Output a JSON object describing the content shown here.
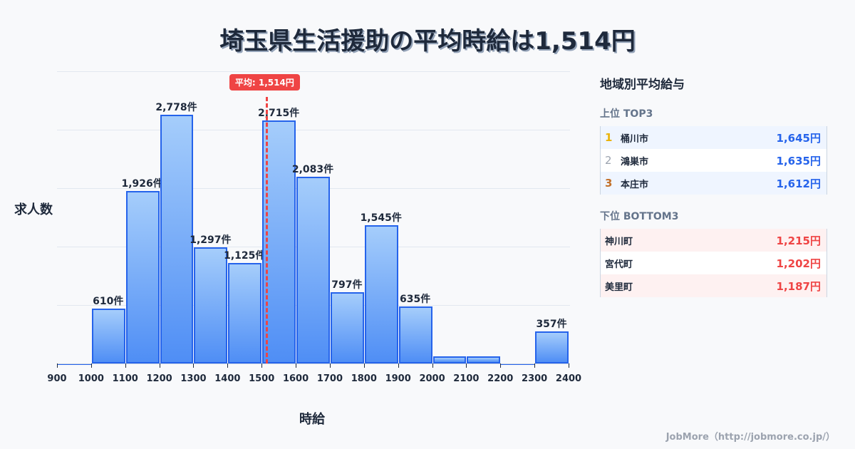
{
  "title": "埼玉県生活援助の平均時給は1,514円",
  "chart_data": {
    "type": "bar",
    "title": "埼玉県生活援助の平均時給は1,514円",
    "xlabel": "時給",
    "ylabel": "求人数",
    "bin_edges": [
      900,
      1000,
      1100,
      1200,
      1300,
      1400,
      1500,
      1600,
      1700,
      1800,
      1900,
      2000,
      2100,
      2200,
      2300,
      2400
    ],
    "categories": [
      "900-1000",
      "1000-1100",
      "1100-1200",
      "1200-1300",
      "1300-1400",
      "1400-1500",
      "1500-1600",
      "1600-1700",
      "1700-1800",
      "1800-1900",
      "1900-2000",
      "2000-2100",
      "2100-2200",
      "2200-2300",
      "2300-2400"
    ],
    "values": [
      5,
      610,
      1926,
      2778,
      1297,
      1125,
      2715,
      2083,
      797,
      1545,
      635,
      80,
      80,
      5,
      357
    ],
    "labels": [
      "",
      "610件",
      "1,926件",
      "2,778件",
      "1,297件",
      "1,125件",
      "2,715件",
      "2,083件",
      "797件",
      "1,545件",
      "635件",
      "",
      "",
      "",
      "357件"
    ],
    "tick_labels": [
      "900",
      "1000",
      "1100",
      "1200",
      "1300",
      "1400",
      "1500",
      "1600",
      "1700",
      "1800",
      "1900",
      "2000",
      "2100",
      "2200",
      "2300",
      "2400"
    ],
    "xlim": [
      900,
      2400
    ],
    "ylim": [
      0,
      3260
    ],
    "grid": true,
    "mean": 1514,
    "mean_label": "平均: 1,514円",
    "colors": {
      "bar_fill_top": "#a5cdfb",
      "bar_fill_bottom": "#4f8ef5",
      "bar_border": "#2563eb",
      "mean_line": "#ef4444"
    }
  },
  "sidebar": {
    "title": "地域別平均給与",
    "top": {
      "label": "上位 TOP3",
      "items": [
        {
          "rank": "1",
          "name": "桶川市",
          "value": "1,645円",
          "rank_color": "#eab308"
        },
        {
          "rank": "2",
          "name": "鴻巣市",
          "value": "1,635円",
          "rank_color": "#9ca3af"
        },
        {
          "rank": "3",
          "name": "本庄市",
          "value": "1,612円",
          "rank_color": "#c2702a"
        }
      ]
    },
    "bottom": {
      "label": "下位 BOTTOM3",
      "items": [
        {
          "name": "神川町",
          "value": "1,215円"
        },
        {
          "name": "宮代町",
          "value": "1,202円"
        },
        {
          "name": "美里町",
          "value": "1,187円"
        }
      ]
    }
  },
  "footer": "JobMore（http://jobmore.co.jp/）"
}
